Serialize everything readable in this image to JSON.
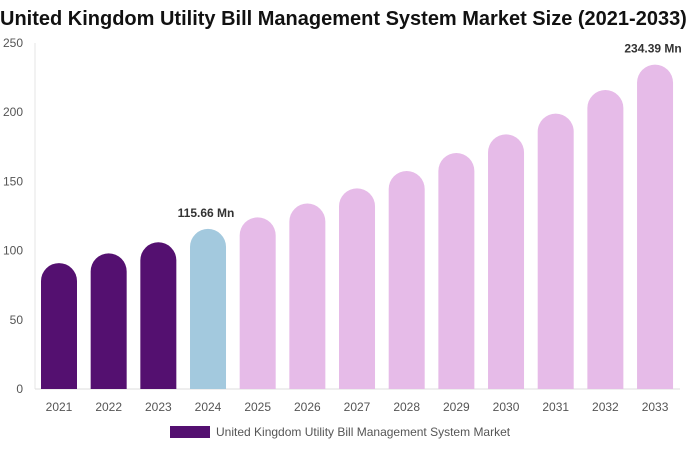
{
  "chart_data": {
    "type": "bar",
    "title": "United Kingdom Utility Bill Management System Market Size (2021-2033)",
    "categories": [
      "2021",
      "2022",
      "2023",
      "2024",
      "2025",
      "2026",
      "2027",
      "2028",
      "2029",
      "2030",
      "2031",
      "2032",
      "2033"
    ],
    "series": [
      {
        "name": "United Kingdom Utility Bill Management System Market",
        "values": [
          91,
          98,
          106,
          115.66,
          124,
          134,
          145,
          157.5,
          170.5,
          184,
          199,
          216,
          234.39
        ]
      }
    ],
    "data_labels": [
      {
        "category": "2024",
        "text": "115.66 Mn"
      },
      {
        "category": "2033",
        "text": "234.39 Mn"
      }
    ],
    "ylim": [
      0,
      250
    ],
    "yticks": [
      0,
      50,
      100,
      150,
      200,
      250
    ],
    "xlabel": "",
    "ylabel": "",
    "grid": false,
    "legend_position": "bottom",
    "colors": {
      "historical": "#541070",
      "base_year": "#a3c9de",
      "forecast": "#e6bbe8"
    },
    "color_groups": {
      "historical": [
        "2021",
        "2022",
        "2023"
      ],
      "base_year": [
        "2024"
      ],
      "forecast": [
        "2025",
        "2026",
        "2027",
        "2028",
        "2029",
        "2030",
        "2031",
        "2032",
        "2033"
      ]
    }
  }
}
